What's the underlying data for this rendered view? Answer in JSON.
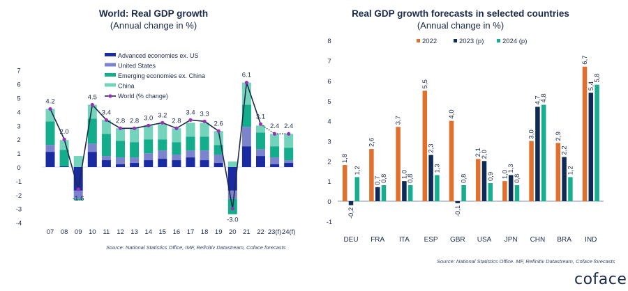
{
  "chart_data": [
    {
      "type": "bar",
      "stacked": true,
      "title": "World: Real GDP growth",
      "subtitle": "(Annual change in %)",
      "categories": [
        "07",
        "08",
        "09",
        "10",
        "11",
        "12",
        "13",
        "14",
        "15",
        "16",
        "17",
        "18",
        "19",
        "20",
        "21",
        "22",
        "23(f)",
        "24(f)"
      ],
      "ylim": [
        -4,
        7
      ],
      "yticks": [
        7,
        6,
        5,
        4,
        3,
        2,
        1,
        0,
        -1,
        -2,
        -3,
        -4
      ],
      "grid": false,
      "legend_position": "top-center",
      "series": [
        {
          "name": "Advanced economies ex. US",
          "color": "#1a2aa0",
          "values": [
            1.1,
            0.05,
            -1.7,
            1.1,
            0.5,
            0.2,
            0.3,
            0.5,
            0.6,
            0.5,
            0.7,
            0.5,
            0.3,
            -1.7,
            1.5,
            0.8,
            0.2,
            0.3
          ]
        },
        {
          "name": "United States",
          "color": "#7b84cc",
          "values": [
            0.5,
            0.0,
            -0.6,
            0.6,
            0.3,
            0.5,
            0.4,
            0.5,
            0.6,
            0.4,
            0.5,
            0.7,
            0.6,
            -0.6,
            1.4,
            0.5,
            0.5,
            0.2
          ]
        },
        {
          "name": "Emerging economies ex. China",
          "color": "#13ad8b",
          "values": [
            1.7,
            1.2,
            -0.1,
            1.8,
            1.6,
            1.2,
            1.1,
            1.0,
            0.8,
            0.9,
            1.0,
            1.0,
            0.7,
            -1.1,
            1.6,
            1.2,
            0.8,
            0.9
          ]
        },
        {
          "name": "China",
          "color": "#74d3bb",
          "values": [
            0.9,
            0.7,
            0.8,
            1.0,
            1.0,
            0.9,
            1.0,
            1.0,
            1.1,
            1.0,
            1.0,
            1.0,
            1.0,
            0.4,
            1.6,
            0.5,
            0.9,
            1.0
          ]
        }
      ],
      "line": {
        "name": "World (% change)",
        "color": "#1b2a4a",
        "marker_color": "#9b2fb8",
        "values": [
          4.2,
          2.0,
          -1.6,
          4.5,
          3.4,
          2.8,
          2.8,
          3.0,
          3.2,
          2.8,
          3.4,
          3.3,
          2.6,
          -3.0,
          6.1,
          3.1,
          2.4,
          2.4
        ],
        "labels": [
          "4.2",
          "2.0",
          "-1.6",
          "4.5",
          "3.4",
          "2.8",
          "2.8",
          "3.0",
          "3.2",
          "2.8",
          "3.4",
          "3.3",
          "2.6",
          "-3.0",
          "6.1",
          "3.1",
          "2.4",
          "2.4"
        ],
        "dotted_from_index": 15
      },
      "source": "Source: National Statistics Office, IMF, Refinitiv Datastream, Coface forecasts"
    },
    {
      "type": "bar",
      "stacked": false,
      "title": "Real GDP growth forecasts in selected countries",
      "subtitle": "(Annual change in %)",
      "categories": [
        "DEU",
        "FRA",
        "ITA",
        "ESP",
        "GBR",
        "USA",
        "JPN",
        "CHN",
        "BRA",
        "IND"
      ],
      "ylim": [
        -1,
        8
      ],
      "yticks": [
        8,
        7,
        6,
        5,
        4,
        3,
        2,
        1,
        0,
        -1
      ],
      "grid": false,
      "legend_position": "top-center",
      "series": [
        {
          "name": "2022",
          "color": "#e0702e",
          "values": [
            1.8,
            2.6,
            3.7,
            5.5,
            4.0,
            2.1,
            1.0,
            3.0,
            2.9,
            6.7
          ],
          "labels": [
            "1,8",
            "2,6",
            "3,7",
            "5,5",
            "4,0",
            "2,1",
            "1,0",
            "3,0",
            "2,9",
            "6,7"
          ]
        },
        {
          "name": "2023 (p)",
          "color": "#0d2b55",
          "values": [
            -0.2,
            0.7,
            1.0,
            2.3,
            -0.1,
            2.0,
            1.3,
            4.7,
            2.2,
            5.4
          ],
          "labels": [
            "-0,2",
            "0,7",
            "1,0",
            "2,3",
            "-0,1",
            "2,0",
            "1,3",
            "4,7",
            "2,2",
            "5,4"
          ]
        },
        {
          "name": "2024 (p)",
          "color": "#17ad8e",
          "values": [
            1.2,
            0.8,
            0.8,
            1.3,
            0.8,
            0.9,
            0.8,
            4.8,
            1.2,
            5.8
          ],
          "labels": [
            "1,2",
            "0,8",
            "0,8",
            "1,3",
            "0,8",
            "0,9",
            "0,8",
            "4,8",
            "1,2",
            "5,8"
          ]
        }
      ],
      "source": "Source: National Statistics Office. MF, Refinitiv Datastream, Coface forecasts"
    }
  ],
  "branding": {
    "logo_text": "coface"
  }
}
